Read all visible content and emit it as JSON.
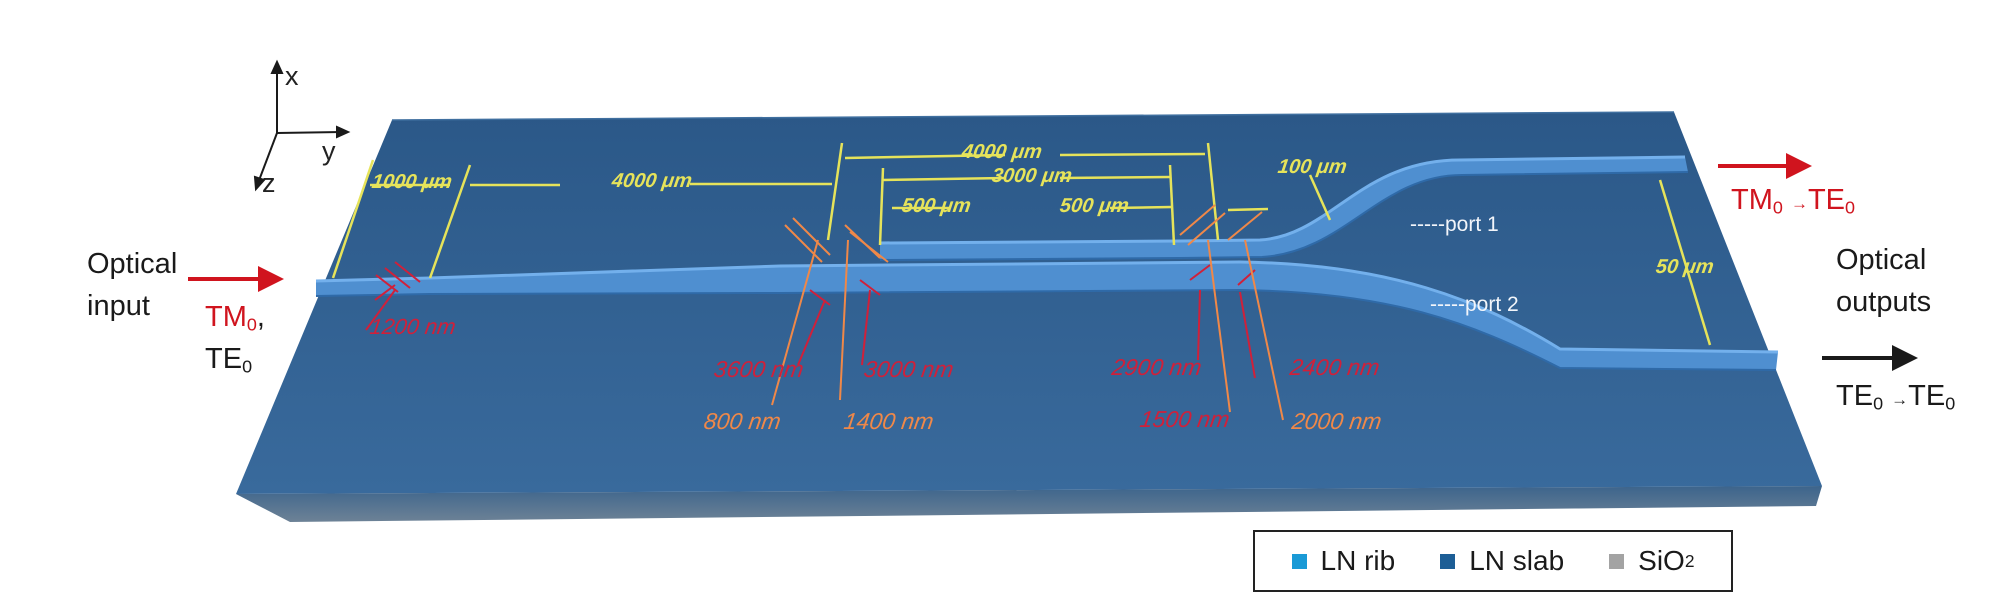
{
  "input": {
    "label_line1": "Optical",
    "label_line2": "input",
    "mode_line1": "TM",
    "mode_line1_sub": "0",
    "mode_line1_suffix": ",",
    "mode_line2": "TE",
    "mode_line2_sub": "0"
  },
  "outputs": {
    "label_line1": "Optical",
    "label_line2": "outputs",
    "port1_mode_from": "TM",
    "port1_mode_from_sub": "0",
    "port1_mode_to": "TE",
    "port1_mode_to_sub": "0",
    "port2_mode_from": "TE",
    "port2_mode_from_sub": "0",
    "port2_mode_to": "TE",
    "port2_mode_to_sub": "0",
    "arrow_glyph": "→"
  },
  "axes": {
    "x": "x",
    "y": "y",
    "z": "z"
  },
  "ports": {
    "port1": "-----port 1",
    "port2": "-----port 2"
  },
  "dimensions": {
    "taper_length": "1000 μm",
    "taper_to_coupler": "4000 μm",
    "coupler_total": "4000 μm",
    "coupler_middle": "3000 μm",
    "coupler_left_taper": "500 μm",
    "coupler_right_taper": "500 μm",
    "bend_gap": "100 μm",
    "output_separation": "50 μm"
  },
  "widths": {
    "input_tip": "1200 nm",
    "w3600": "3600 nm",
    "w800": "800 nm",
    "w3000": "3000 nm",
    "w1400": "1400 nm",
    "w2900": "2900 nm",
    "w1500": "1500 nm",
    "w2400": "2400 nm",
    "w2000": "2000 nm"
  },
  "legend": [
    {
      "label": "LN rib",
      "color": "#1a9ad6"
    },
    {
      "label": "LN slab",
      "color": "#1d5e96"
    },
    {
      "label": "SiO",
      "sub": "2",
      "color": "#a3a3a3"
    }
  ],
  "colors": {
    "slab_top": "#2d5c8c",
    "rib": "#4d8ed0",
    "dimension_yellow": "#e6e35a",
    "width_red": "#d0203a",
    "width_orange": "#f08848",
    "arrow_red": "#d0141e"
  }
}
